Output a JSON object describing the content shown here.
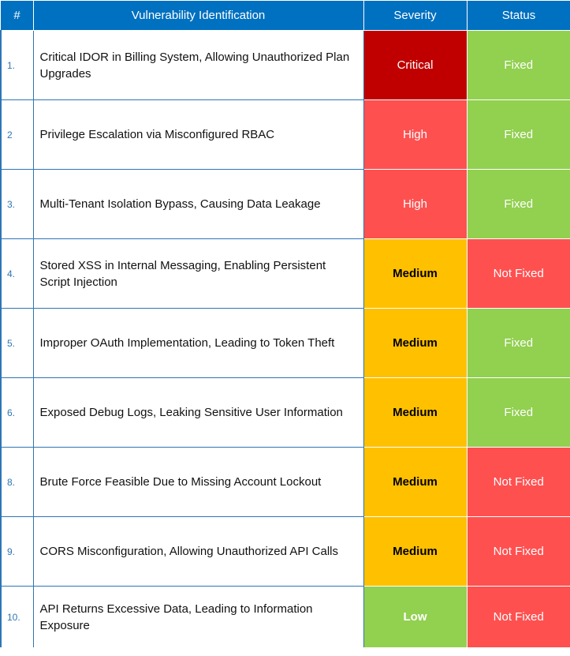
{
  "header": {
    "num": "#",
    "name": "Vulnerability Identification",
    "severity": "Severity",
    "status": "Status"
  },
  "colors": {
    "header_bg": "#0070c0",
    "border": "#2e75b6",
    "critical": "#c00000",
    "high": "#ff5050",
    "medium": "#ffc000",
    "low": "#92d050",
    "fixed": "#92d050",
    "not_fixed": "#ff5050"
  },
  "rows": [
    {
      "num": "1.",
      "name": "Critical IDOR in Billing System, Allowing Unauthorized Plan Upgrades",
      "severity": "Critical",
      "status": "Fixed"
    },
    {
      "num": "2",
      "name": "Privilege Escalation via Misconfigured RBAC",
      "severity": "High",
      "status": "Fixed"
    },
    {
      "num": "3.",
      "name": "Multi-Tenant Isolation Bypass, Causing Data Leakage",
      "severity": "High",
      "status": "Fixed"
    },
    {
      "num": "4.",
      "name": "Stored XSS in Internal Messaging, Enabling Persistent Script Injection",
      "severity": "Medium",
      "status": "Not Fixed"
    },
    {
      "num": "5.",
      "name": "Improper OAuth Implementation, Leading to Token Theft",
      "severity": "Medium",
      "status": "Fixed"
    },
    {
      "num": "6.",
      "name": "Exposed Debug Logs, Leaking Sensitive User Information",
      "severity": "Medium",
      "status": "Fixed"
    },
    {
      "num": "8.",
      "name": "Brute Force Feasible Due to Missing Account Lockout",
      "severity": "Medium",
      "status": "Not Fixed"
    },
    {
      "num": "9.",
      "name": "CORS Misconfiguration, Allowing Unauthorized API Calls",
      "severity": "Medium",
      "status": "Not Fixed"
    },
    {
      "num": "10.",
      "name": "API Returns Excessive Data, Leading to Information Exposure",
      "severity": "Low",
      "status": "Not Fixed"
    }
  ]
}
